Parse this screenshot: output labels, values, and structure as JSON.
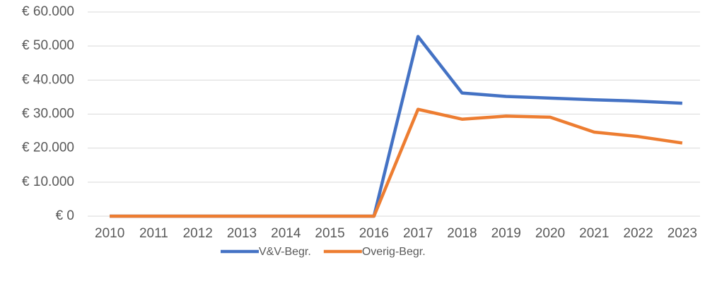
{
  "chart_data": {
    "type": "line",
    "categories": [
      "2010",
      "2011",
      "2012",
      "2013",
      "2014",
      "2015",
      "2016",
      "2017",
      "2018",
      "2019",
      "2020",
      "2021",
      "2022",
      "2023"
    ],
    "series": [
      {
        "name": "V&V-Begr.",
        "color": "#4472c4",
        "values": [
          0,
          0,
          0,
          0,
          0,
          0,
          0,
          52800,
          36200,
          35200,
          34700,
          34200,
          33800,
          33200
        ]
      },
      {
        "name": "Overig-Begr.",
        "color": "#ed7d31",
        "values": [
          0,
          0,
          0,
          0,
          0,
          0,
          0,
          31400,
          28500,
          29400,
          29100,
          24700,
          23400,
          21500
        ]
      }
    ],
    "ylim": [
      0,
      60000
    ],
    "yticks": [
      {
        "value": 0,
        "label": "€ 0"
      },
      {
        "value": 10000,
        "label": "€ 10.000"
      },
      {
        "value": 20000,
        "label": "€ 20.000"
      },
      {
        "value": 30000,
        "label": "€ 30.000"
      },
      {
        "value": 40000,
        "label": "€ 40.000"
      },
      {
        "value": 50000,
        "label": "€ 50.000"
      },
      {
        "value": 60000,
        "label": "€ 60.000"
      }
    ],
    "grid": true,
    "legend": "bottom"
  }
}
